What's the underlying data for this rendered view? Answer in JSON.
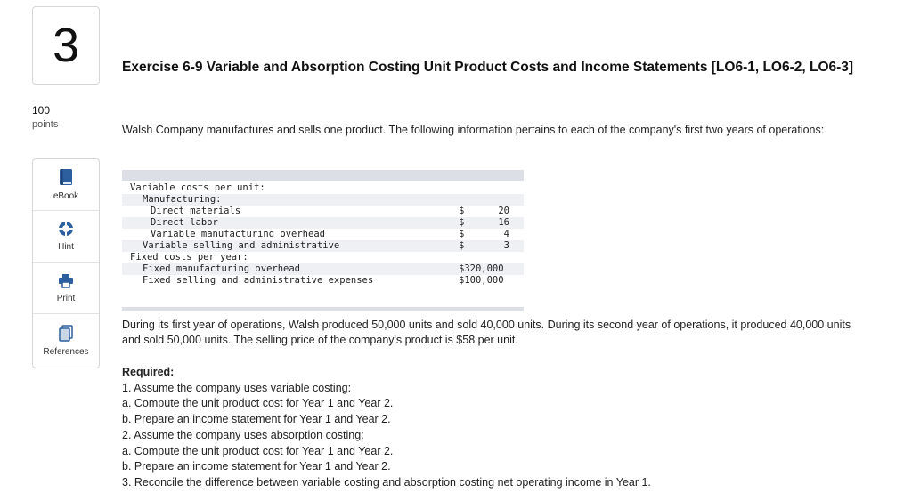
{
  "question": {
    "number": "3",
    "points_value": "100",
    "points_label": "points"
  },
  "tools": [
    {
      "label": "eBook",
      "icon": "book-icon"
    },
    {
      "label": "Hint",
      "icon": "hint-icon"
    },
    {
      "label": "Print",
      "icon": "print-icon"
    },
    {
      "label": "References",
      "icon": "references-icon"
    }
  ],
  "exercise": {
    "title": "Exercise 6-9 Variable and Absorption Costing Unit Product Costs and Income Statements [LO6-1, LO6-2, LO6-3]",
    "intro": "Walsh Company manufactures and sells one product. The following information pertains to each of the company's first two years of operations:"
  },
  "cost_table": {
    "rows": [
      {
        "label": "Variable costs per unit:",
        "dollar": "",
        "value": ""
      },
      {
        "label": "Manufacturing:",
        "dollar": "",
        "value": ""
      },
      {
        "label": "Direct materials",
        "dollar": "$",
        "value": "20"
      },
      {
        "label": "Direct labor",
        "dollar": "$",
        "value": "16"
      },
      {
        "label": "Variable manufacturing overhead",
        "dollar": "$",
        "value": "4"
      },
      {
        "label": "Variable selling and administrative",
        "dollar": "$",
        "value": "3"
      },
      {
        "label": "Fixed costs per year:",
        "dollar": "",
        "value": ""
      },
      {
        "label": "Fixed manufacturing overhead",
        "dollar": "",
        "value": "$320,000"
      },
      {
        "label": "Fixed selling and administrative expenses",
        "dollar": "",
        "value": "$100,000"
      }
    ]
  },
  "body": {
    "paragraph": "During its first year of operations, Walsh produced 50,000 units and sold 40,000 units. During its second year of operations, it produced 40,000 units and sold 50,000 units. The selling price of the company's product is $58 per unit."
  },
  "required": {
    "heading": "Required:",
    "items": [
      "1. Assume the company uses variable costing:",
      "a. Compute the unit product cost for Year 1 and Year 2.",
      "b. Prepare an income statement for Year 1 and Year 2.",
      "2. Assume the company uses absorption costing:",
      "a. Compute the unit product cost for Year 1 and Year 2.",
      "b. Prepare an income statement for Year 1 and Year 2.",
      "3. Reconcile the difference between variable costing and absorption costing net operating income in Year 1."
    ]
  }
}
